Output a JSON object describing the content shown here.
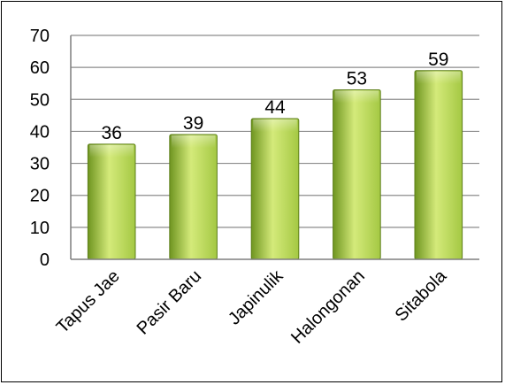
{
  "chart_data": {
    "type": "bar",
    "categories": [
      "Tapus Jae",
      "Pasir Baru",
      "Japinulik",
      "Halongonan",
      "Sitabola"
    ],
    "values": [
      36,
      39,
      44,
      53,
      59
    ],
    "ylim": [
      0,
      70
    ],
    "yticks": [
      0,
      10,
      20,
      30,
      40,
      50,
      60,
      70
    ],
    "grid": true,
    "legend": "none",
    "data_labels": true,
    "colors": {
      "bar_light": "#d4ea7a",
      "bar_mid": "#a4c843",
      "bar_dark": "#6f9520",
      "bar_edge": "#5d7f1a",
      "grid": "#8c8c8c",
      "axis": "#7f7f7f"
    }
  }
}
